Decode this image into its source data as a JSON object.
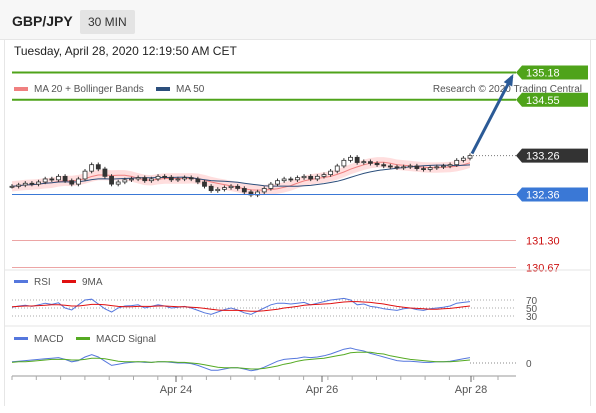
{
  "header": {
    "symbol": "GBP/JPY",
    "timeframe": "30 MIN"
  },
  "datetime": "Tuesday, April 28, 2020 12:19:50 AM CET",
  "legend": [
    {
      "label": "MA 20 + Bollinger Bands",
      "color": "#f08080"
    },
    {
      "label": "MA 50",
      "color": "#2c4f7c"
    }
  ],
  "credit": "Research © 2020 Trading Central",
  "colors": {
    "resistance": "#4fa31a",
    "support": "#3a78d6",
    "pivot_grey": "#333333",
    "support_text": "#cc1111",
    "arrow": "#2b5a96",
    "candle": "#333333",
    "band": "#ffc8c8"
  },
  "price_levels": [
    {
      "value": "135.18",
      "kind": "resistance"
    },
    {
      "value": "134.55",
      "kind": "resistance"
    },
    {
      "value": "133.26",
      "kind": "current"
    },
    {
      "value": "132.36",
      "kind": "pivot"
    },
    {
      "value": "131.30",
      "kind": "support"
    },
    {
      "value": "130.67",
      "kind": "support"
    }
  ],
  "rsi": {
    "legend": [
      {
        "label": "RSI",
        "color": "#5577dd"
      },
      {
        "label": "9MA",
        "color": "#e01010"
      }
    ],
    "levels": [
      "70",
      "50",
      "30"
    ]
  },
  "macd": {
    "legend": [
      {
        "label": "MACD",
        "color": "#5577dd"
      },
      {
        "label": "MACD Signal",
        "color": "#55aa22"
      }
    ],
    "zero_label": "0"
  },
  "x_axis_labels": [
    "Apr 24",
    "Apr 26",
    "Apr 28"
  ],
  "chart_data": {
    "type": "line",
    "price_series": {
      "name": "GBP/JPY",
      "y": [
        132.55,
        132.58,
        132.62,
        132.6,
        132.65,
        132.72,
        132.7,
        132.78,
        132.68,
        132.6,
        132.72,
        132.9,
        133.05,
        132.95,
        132.78,
        132.6,
        132.65,
        132.7,
        132.72,
        132.75,
        132.68,
        132.72,
        132.78,
        132.76,
        132.7,
        132.72,
        132.75,
        132.72,
        132.65,
        132.55,
        132.45,
        132.48,
        132.52,
        132.55,
        132.5,
        132.42,
        132.35,
        132.42,
        132.5,
        132.6,
        132.68,
        132.72,
        132.7,
        132.75,
        132.78,
        132.72,
        132.78,
        132.82,
        132.9,
        133.02,
        133.15,
        133.22,
        133.1,
        133.12,
        133.08,
        133.05,
        133.02,
        133.0,
        132.98,
        133.0,
        133.02,
        132.96,
        132.94,
        132.98,
        133.0,
        133.02,
        133.05,
        133.15,
        133.2,
        133.26
      ],
      "ylim": [
        130.5,
        135.4
      ]
    },
    "levels": [
      135.18,
      134.55,
      133.26,
      132.36,
      131.3,
      130.67
    ],
    "rsi": {
      "levels": [
        70,
        50,
        30
      ],
      "series": [
        {
          "name": "RSI",
          "values": [
            52,
            55,
            57,
            54,
            58,
            62,
            59,
            63,
            50,
            45,
            58,
            70,
            72,
            60,
            48,
            40,
            50,
            55,
            56,
            58,
            50,
            54,
            58,
            55,
            50,
            52,
            54,
            50,
            44,
            38,
            34,
            40,
            46,
            50,
            45,
            38,
            34,
            42,
            50,
            58,
            62,
            62,
            60,
            62,
            64,
            58,
            62,
            66,
            70,
            72,
            74,
            70,
            58,
            60,
            54,
            52,
            48,
            46,
            44,
            48,
            50,
            46,
            44,
            48,
            50,
            52,
            55,
            62,
            64,
            66
          ]
        },
        {
          "name": "9MA",
          "values": [
            53,
            54,
            55,
            55,
            56,
            57,
            58,
            58,
            57,
            55,
            55,
            57,
            59,
            59,
            58,
            56,
            54,
            53,
            53,
            54,
            54,
            54,
            55,
            55,
            54,
            53,
            53,
            52,
            51,
            49,
            47,
            45,
            44,
            44,
            44,
            43,
            42,
            42,
            43,
            45,
            47,
            50,
            52,
            54,
            57,
            58,
            59,
            60,
            61,
            63,
            65,
            66,
            66,
            65,
            64,
            62,
            60,
            57,
            54,
            52,
            50,
            49,
            48,
            47,
            47,
            48,
            49,
            51,
            53,
            55
          ]
        }
      ]
    },
    "macd": {
      "series": [
        {
          "name": "MACD",
          "values": [
            0.02,
            0.03,
            0.04,
            0.05,
            0.06,
            0.07,
            0.08,
            0.09,
            0.06,
            0.02,
            0.04,
            0.1,
            0.14,
            0.1,
            0.03,
            -0.04,
            -0.02,
            0.0,
            0.01,
            0.02,
            0.01,
            0.01,
            0.02,
            0.02,
            0.01,
            0.0,
            0.0,
            -0.01,
            -0.04,
            -0.08,
            -0.12,
            -0.12,
            -0.1,
            -0.08,
            -0.08,
            -0.1,
            -0.13,
            -0.11,
            -0.07,
            -0.02,
            0.03,
            0.06,
            0.07,
            0.08,
            0.1,
            0.09,
            0.1,
            0.12,
            0.15,
            0.19,
            0.23,
            0.25,
            0.22,
            0.2,
            0.16,
            0.13,
            0.1,
            0.07,
            0.04,
            0.03,
            0.03,
            0.02,
            0.01,
            0.01,
            0.02,
            0.02,
            0.03,
            0.05,
            0.07,
            0.09
          ]
        },
        {
          "name": "MACD Signal",
          "values": [
            0.01,
            0.02,
            0.02,
            0.03,
            0.04,
            0.05,
            0.06,
            0.06,
            0.06,
            0.05,
            0.05,
            0.06,
            0.08,
            0.08,
            0.07,
            0.05,
            0.03,
            0.02,
            0.02,
            0.02,
            0.02,
            0.01,
            0.02,
            0.02,
            0.02,
            0.01,
            0.01,
            0.0,
            -0.01,
            -0.03,
            -0.05,
            -0.07,
            -0.08,
            -0.08,
            -0.08,
            -0.09,
            -0.1,
            -0.1,
            -0.09,
            -0.07,
            -0.05,
            -0.02,
            0.0,
            0.03,
            0.05,
            0.06,
            0.07,
            0.08,
            0.1,
            0.12,
            0.14,
            0.17,
            0.18,
            0.18,
            0.18,
            0.16,
            0.15,
            0.12,
            0.1,
            0.08,
            0.06,
            0.05,
            0.04,
            0.03,
            0.02,
            0.02,
            0.02,
            0.03,
            0.04,
            0.05
          ]
        }
      ]
    }
  }
}
